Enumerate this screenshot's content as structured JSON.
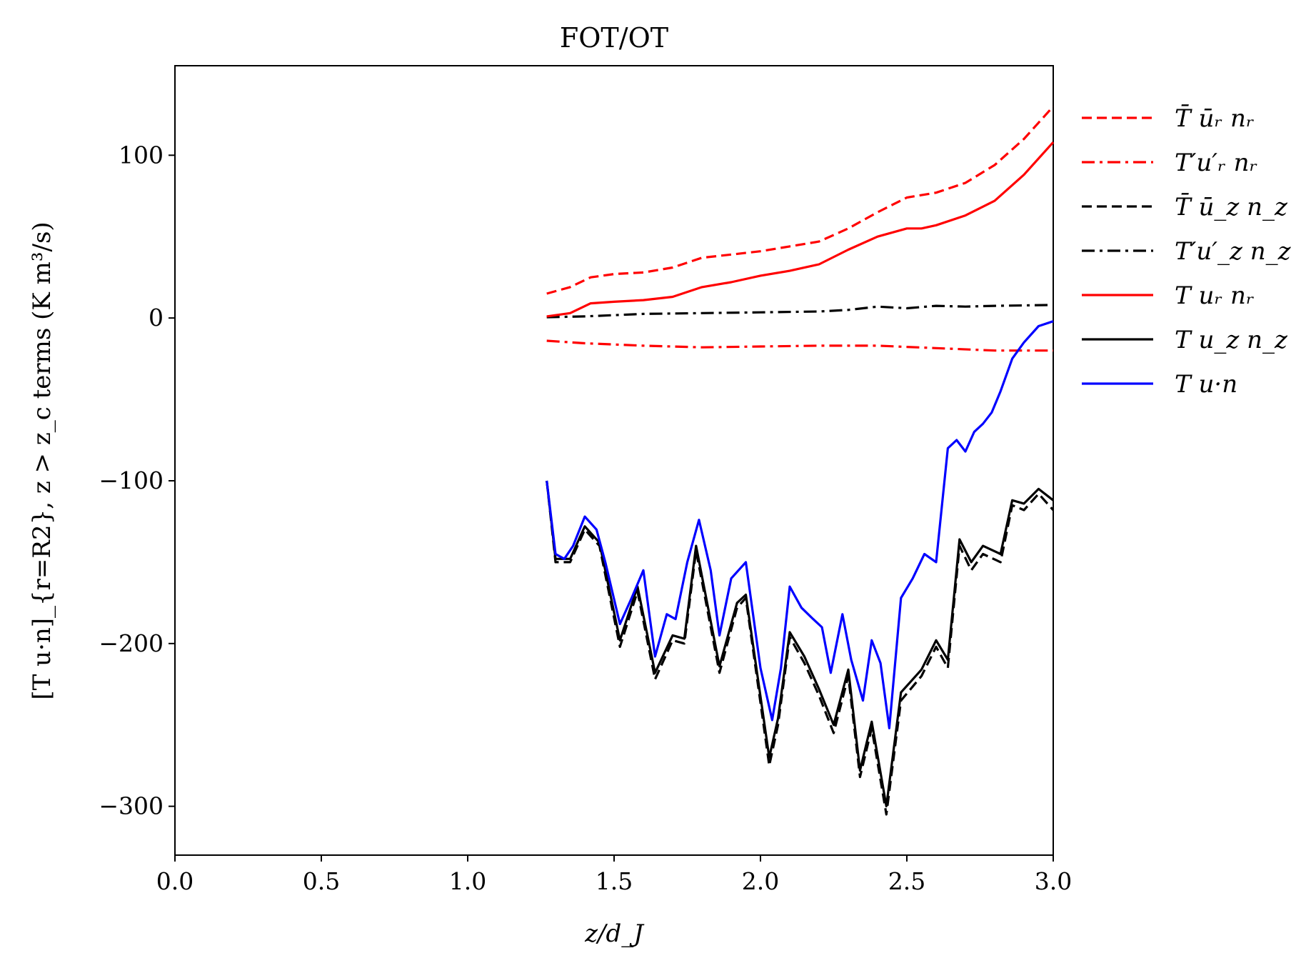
{
  "chart_data": {
    "type": "line",
    "title": "FOT/OT",
    "xlabel": "z/d_J",
    "ylabel": "[T u·n]_{r=R2}, z > z_c terms (K m³/s)",
    "xlim": [
      0.0,
      3.0
    ],
    "ylim": [
      -330,
      155
    ],
    "grid": false,
    "legend_position": "outside-right",
    "x_ticks": [
      "0.0",
      "0.5",
      "1.0",
      "1.5",
      "2.0",
      "2.5",
      "3.0"
    ],
    "y_ticks": [
      "−300",
      "−200",
      "−100",
      "0",
      "100"
    ],
    "series": [
      {
        "name": "T̄ ūᵣ nᵣ",
        "color": "#ff0000",
        "dash": "dashed",
        "x": [
          1.27,
          1.35,
          1.42,
          1.5,
          1.6,
          1.7,
          1.8,
          1.9,
          2.0,
          2.1,
          2.2,
          2.3,
          2.4,
          2.5,
          2.6,
          2.7,
          2.8,
          2.9,
          3.0
        ],
        "y": [
          15,
          19,
          25,
          27,
          28,
          31,
          37,
          39,
          41,
          44,
          47,
          55,
          65,
          74,
          77,
          83,
          94,
          110,
          130
        ]
      },
      {
        "name": "T′u′ᵣ nᵣ",
        "color": "#ff0000",
        "dash": "dashdot",
        "x": [
          1.27,
          1.4,
          1.6,
          1.8,
          2.0,
          2.2,
          2.4,
          2.6,
          2.8,
          3.0
        ],
        "y": [
          -14,
          -15.5,
          -17,
          -18,
          -17.5,
          -17,
          -17,
          -18.5,
          -20,
          -20
        ]
      },
      {
        "name": "T̄ ū_z n_z",
        "color": "#000000",
        "dash": "dashed",
        "x": [
          1.27,
          1.3,
          1.35,
          1.4,
          1.45,
          1.52,
          1.58,
          1.64,
          1.7,
          1.74,
          1.78,
          1.86,
          1.92,
          1.95,
          2.03,
          2.06,
          2.1,
          2.15,
          2.2,
          2.25,
          2.3,
          2.34,
          2.38,
          2.43,
          2.48,
          2.55,
          2.6,
          2.64,
          2.68,
          2.72,
          2.76,
          2.82,
          2.86,
          2.9,
          2.95,
          3.0
        ],
        "y": [
          -100,
          -150,
          -150,
          -130,
          -140,
          -202,
          -168,
          -222,
          -198,
          -200,
          -143,
          -218,
          -178,
          -172,
          -275,
          -250,
          -196,
          -212,
          -232,
          -255,
          -220,
          -282,
          -252,
          -305,
          -235,
          -220,
          -202,
          -215,
          -140,
          -155,
          -145,
          -150,
          -115,
          -118,
          -108,
          -118
        ]
      },
      {
        "name": "T′u′_z n_z",
        "color": "#000000",
        "dash": "dashdot",
        "x": [
          1.27,
          1.4,
          1.6,
          1.8,
          2.0,
          2.2,
          2.3,
          2.4,
          2.5,
          2.6,
          2.7,
          2.8,
          3.0
        ],
        "y": [
          0.5,
          1,
          2.5,
          3,
          3.5,
          4,
          5,
          7,
          6,
          7.5,
          7,
          7.5,
          8
        ]
      },
      {
        "name": "T uᵣ nᵣ",
        "color": "#ff0000",
        "dash": "solid",
        "x": [
          1.27,
          1.35,
          1.42,
          1.5,
          1.6,
          1.7,
          1.8,
          1.9,
          2.0,
          2.1,
          2.2,
          2.3,
          2.4,
          2.5,
          2.55,
          2.6,
          2.7,
          2.8,
          2.9,
          3.0
        ],
        "y": [
          1,
          3,
          9,
          10,
          11,
          13,
          19,
          22,
          26,
          29,
          33,
          42,
          50,
          55,
          55,
          57,
          63,
          72,
          88,
          108
        ]
      },
      {
        "name": "T u_z n_z",
        "color": "#000000",
        "dash": "solid",
        "x": [
          1.27,
          1.3,
          1.35,
          1.4,
          1.45,
          1.52,
          1.58,
          1.64,
          1.7,
          1.74,
          1.78,
          1.86,
          1.92,
          1.95,
          2.03,
          2.06,
          2.1,
          2.15,
          2.2,
          2.25,
          2.3,
          2.34,
          2.38,
          2.43,
          2.48,
          2.55,
          2.6,
          2.64,
          2.68,
          2.72,
          2.76,
          2.82,
          2.86,
          2.9,
          2.95,
          3.0
        ],
        "y": [
          -100,
          -148,
          -148,
          -128,
          -138,
          -198,
          -165,
          -218,
          -195,
          -197,
          -140,
          -214,
          -175,
          -170,
          -270,
          -246,
          -193,
          -208,
          -228,
          -250,
          -216,
          -278,
          -248,
          -300,
          -230,
          -216,
          -198,
          -210,
          -136,
          -150,
          -140,
          -145,
          -112,
          -114,
          -105,
          -112
        ]
      },
      {
        "name": "T u·n",
        "color": "#0000ff",
        "dash": "solid",
        "x": [
          1.27,
          1.3,
          1.33,
          1.36,
          1.4,
          1.44,
          1.47,
          1.52,
          1.56,
          1.6,
          1.64,
          1.68,
          1.71,
          1.75,
          1.79,
          1.83,
          1.86,
          1.9,
          1.95,
          2.0,
          2.04,
          2.07,
          2.1,
          2.14,
          2.18,
          2.21,
          2.24,
          2.28,
          2.31,
          2.35,
          2.38,
          2.41,
          2.44,
          2.48,
          2.52,
          2.56,
          2.6,
          2.64,
          2.67,
          2.7,
          2.73,
          2.76,
          2.79,
          2.82,
          2.86,
          2.9,
          2.95,
          3.0
        ],
        "y": [
          -100,
          -145,
          -148,
          -140,
          -122,
          -130,
          -150,
          -188,
          -172,
          -155,
          -208,
          -182,
          -185,
          -150,
          -124,
          -155,
          -195,
          -160,
          -150,
          -215,
          -247,
          -215,
          -165,
          -178,
          -185,
          -190,
          -218,
          -182,
          -210,
          -235,
          -198,
          -212,
          -252,
          -172,
          -160,
          -145,
          -150,
          -80,
          -75,
          -82,
          -70,
          -65,
          -58,
          -45,
          -25,
          -15,
          -5,
          -2
        ]
      }
    ]
  }
}
